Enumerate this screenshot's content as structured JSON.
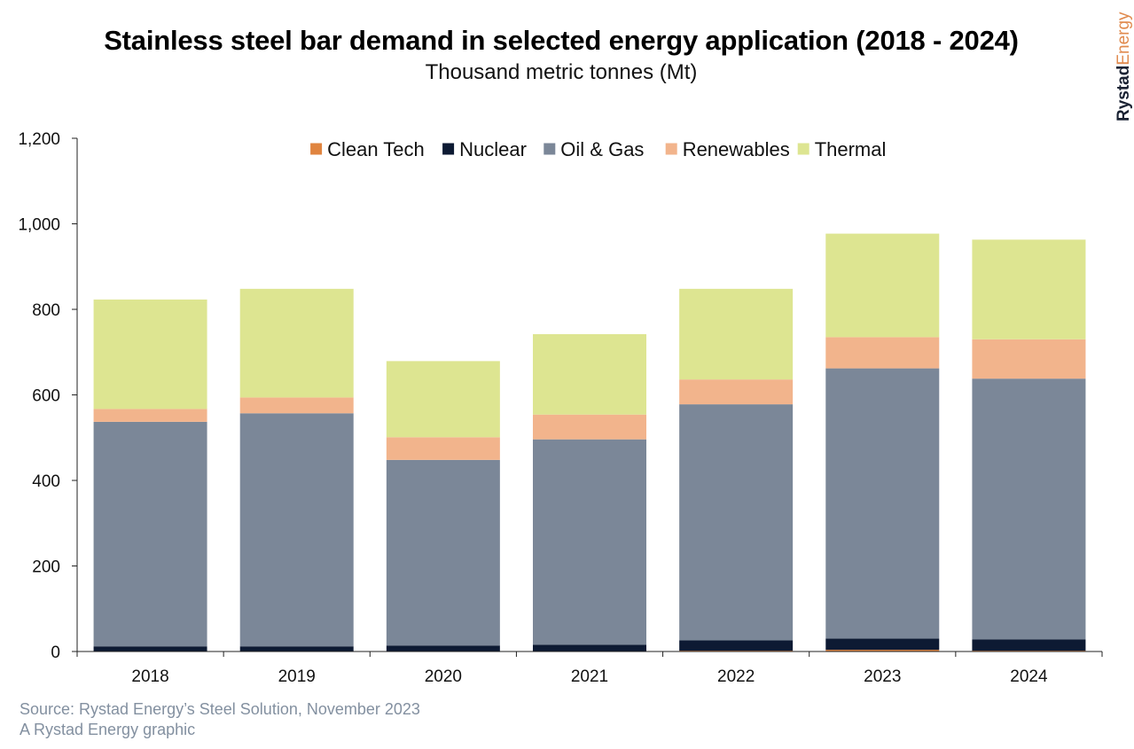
{
  "title": "Stainless steel bar demand in selected energy application (2018 - 2024)",
  "subtitle": "Thousand metric tonnes (Mt)",
  "brand": {
    "part1": "Rystad",
    "part2": "Energy"
  },
  "footer": {
    "source": "Source: Rystad Energy’s Steel Solution, November 2023",
    "credit": "A Rystad Energy graphic"
  },
  "chart_data": {
    "type": "bar",
    "stacked": true,
    "categories": [
      "2018",
      "2019",
      "2020",
      "2021",
      "2022",
      "2023",
      "2024"
    ],
    "ylim": [
      0,
      1200
    ],
    "yticks": [
      0,
      200,
      400,
      600,
      800,
      1000,
      1200
    ],
    "ytick_labels": [
      "0",
      "200",
      "400",
      "600",
      "800",
      "1,000",
      "1,200"
    ],
    "legend_position": "top-center",
    "grid": false,
    "series": [
      {
        "name": "Clean Tech",
        "color": "#e0843f",
        "values": [
          0,
          0,
          0,
          0,
          2,
          4,
          2
        ]
      },
      {
        "name": "Nuclear",
        "color": "#0d1a33",
        "values": [
          12,
          12,
          14,
          16,
          24,
          26,
          26
        ]
      },
      {
        "name": "Oil & Gas",
        "color": "#7b8798",
        "values": [
          525,
          545,
          434,
          480,
          552,
          632,
          610
        ]
      },
      {
        "name": "Renewables",
        "color": "#f2b48c",
        "values": [
          30,
          37,
          53,
          58,
          58,
          73,
          92
        ]
      },
      {
        "name": "Thermal",
        "color": "#dde591",
        "values": [
          256,
          254,
          178,
          188,
          212,
          242,
          233
        ]
      }
    ]
  }
}
